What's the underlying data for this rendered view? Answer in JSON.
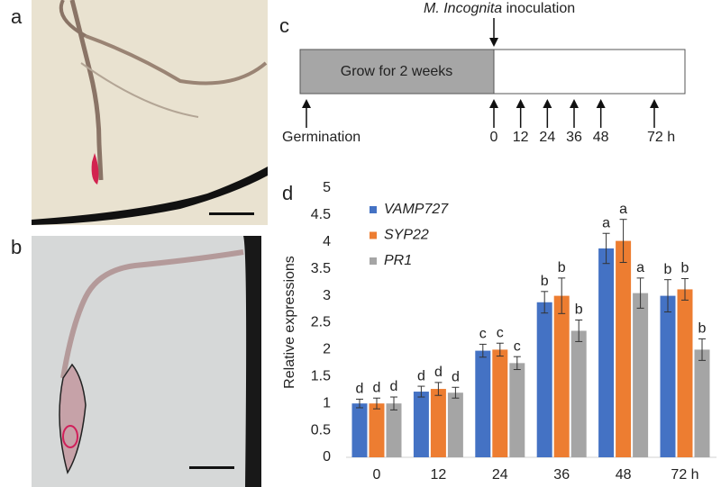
{
  "panel_labels": [
    "a",
    "b",
    "c",
    "d"
  ],
  "timeline": {
    "species": "M. Incognita",
    "event": "inoculation",
    "box_text": "Grow for 2 weeks",
    "start_label": "Germination",
    "ticks": [
      0,
      12,
      24,
      36,
      48,
      {
        "value": 72,
        "label": "72 h"
      }
    ],
    "range": [
      0,
      72
    ]
  },
  "chart_data": {
    "type": "bar",
    "y_label": "Relative expressions",
    "categories": [
      "0",
      "12",
      "24",
      "36",
      "48",
      "72 h"
    ],
    "series": [
      {
        "name": "VAMP727",
        "color": "#4472c4",
        "values": [
          1.0,
          1.22,
          1.98,
          2.88,
          3.88,
          3.0
        ],
        "errors": [
          0.08,
          0.1,
          0.12,
          0.2,
          0.28,
          0.3
        ],
        "letters": [
          "d",
          "d",
          "c",
          "b",
          "a",
          "b"
        ]
      },
      {
        "name": "SYP22",
        "color": "#ed7d31",
        "values": [
          1.0,
          1.27,
          2.0,
          3.0,
          4.02,
          3.12
        ],
        "errors": [
          0.1,
          0.12,
          0.12,
          0.33,
          0.4,
          0.2
        ],
        "letters": [
          "d",
          "d",
          "c",
          "b",
          "a",
          "b"
        ]
      },
      {
        "name": "PR1",
        "color": "#a5a5a5",
        "values": [
          1.0,
          1.2,
          1.75,
          2.35,
          3.05,
          2.0
        ],
        "errors": [
          0.12,
          0.1,
          0.12,
          0.2,
          0.28,
          0.2
        ],
        "letters": [
          "d",
          "d",
          "c",
          "b",
          "a",
          "b"
        ]
      }
    ],
    "ylim": [
      0,
      5
    ],
    "yticks": [
      0,
      0.5,
      1,
      1.5,
      2,
      2.5,
      3,
      3.5,
      4,
      4.5,
      5
    ],
    "grid": false
  }
}
